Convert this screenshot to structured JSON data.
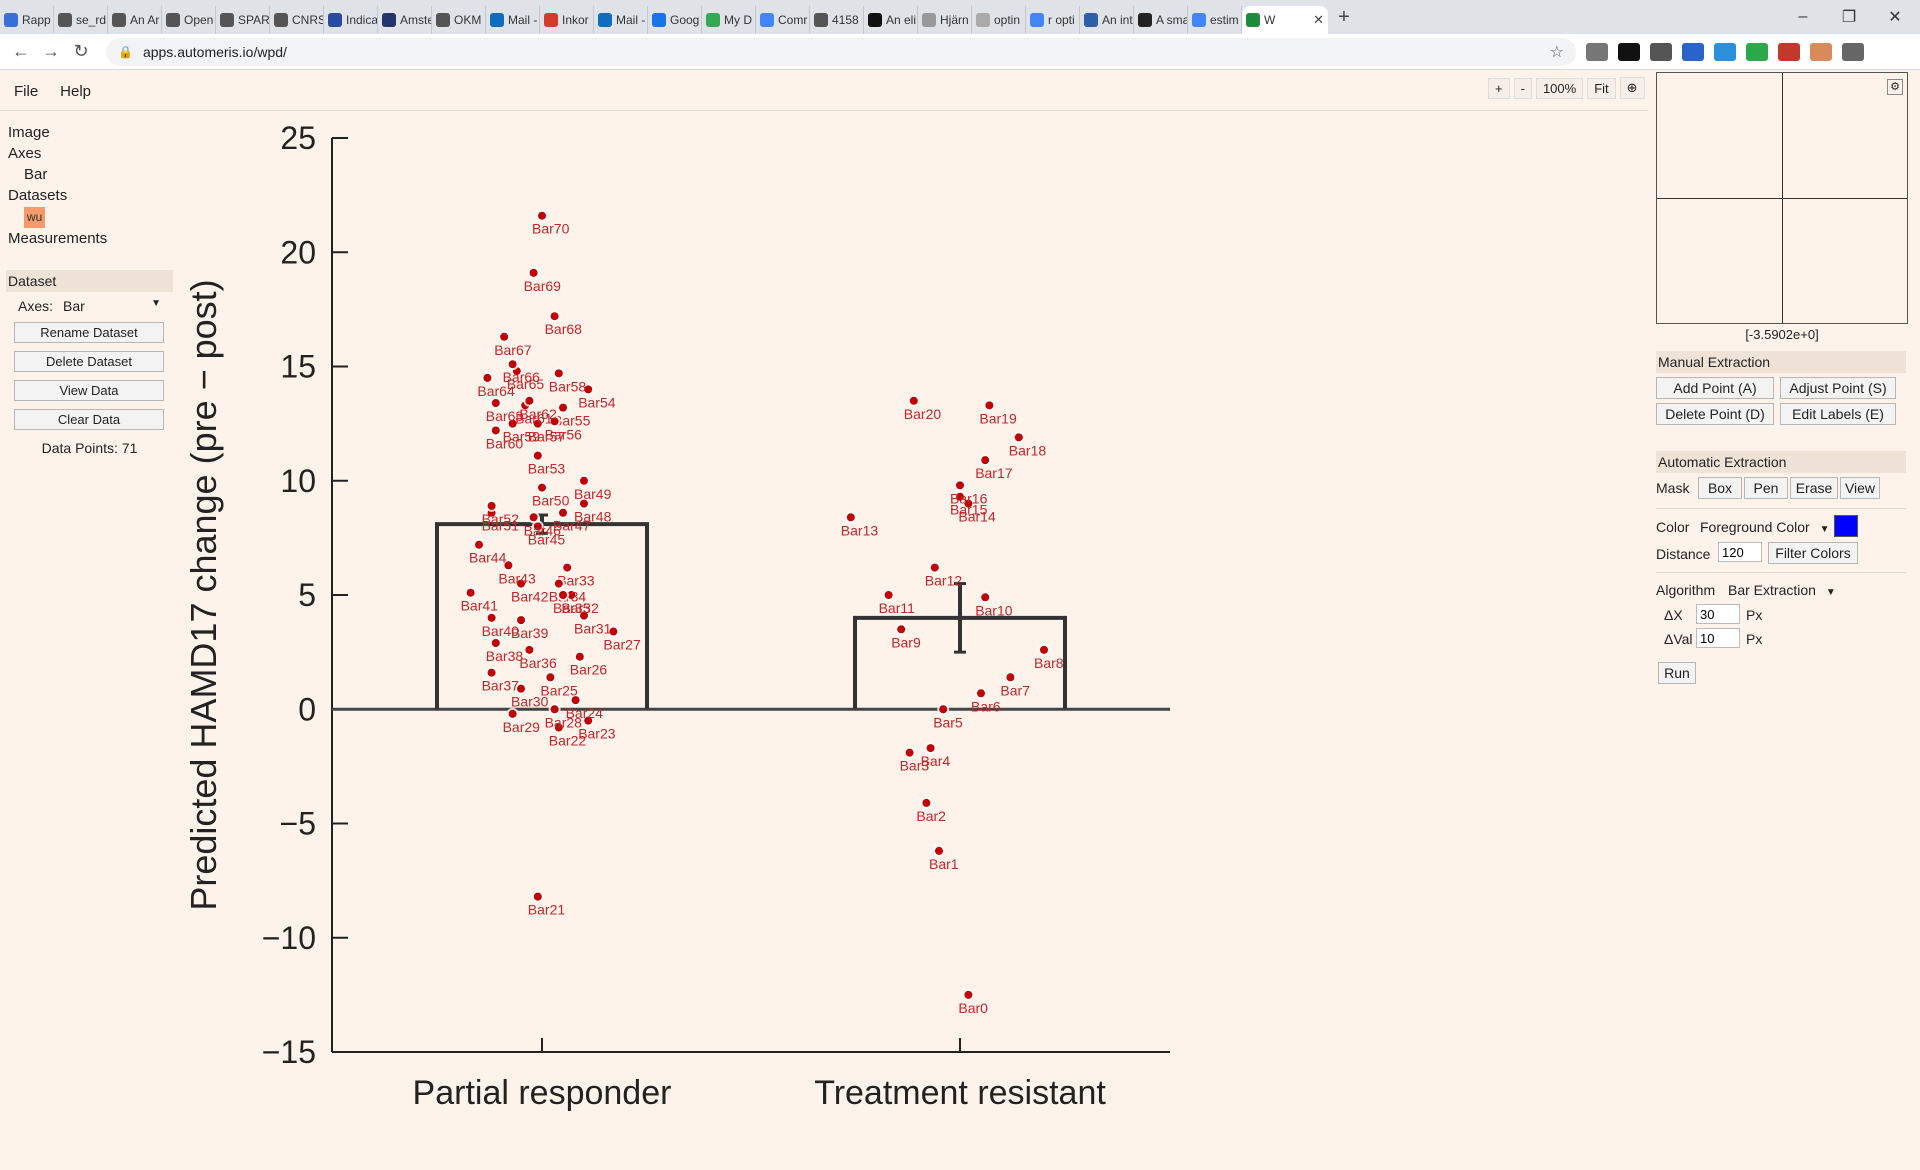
{
  "browser": {
    "tabs": [
      {
        "label": "Rapp",
        "color": "#3b6fd8"
      },
      {
        "label": "se_rd",
        "color": "#555555"
      },
      {
        "label": "An Ar",
        "color": "#555555"
      },
      {
        "label": "Open",
        "color": "#555555"
      },
      {
        "label": "SPAR",
        "color": "#555555"
      },
      {
        "label": "CNRS",
        "color": "#555555"
      },
      {
        "label": "Indica",
        "color": "#2a4aa0"
      },
      {
        "label": "Amste",
        "color": "#23356e"
      },
      {
        "label": "OKM",
        "color": "#555555"
      },
      {
        "label": "Mail -",
        "color": "#0f6cbd"
      },
      {
        "label": "Inkor",
        "color": "#d33b2c"
      },
      {
        "label": "Mail -",
        "color": "#0f6cbd"
      },
      {
        "label": "Goog",
        "color": "#1a73e8"
      },
      {
        "label": "My D",
        "color": "#34a853"
      },
      {
        "label": "Comr",
        "color": "#4285f4"
      },
      {
        "label": "4158",
        "color": "#555555"
      },
      {
        "label": "An eli",
        "color": "#111111"
      },
      {
        "label": "Hjärn",
        "color": "#999999"
      },
      {
        "label": "optin",
        "color": "#aaaaaa"
      },
      {
        "label": "r opti",
        "color": "#4285f4"
      },
      {
        "label": "An int",
        "color": "#2f5ea8"
      },
      {
        "label": "A sma",
        "color": "#222222"
      },
      {
        "label": "estim",
        "color": "#4285f4"
      }
    ],
    "active_tab": {
      "label": "W",
      "color": "#1e8a3c"
    },
    "url": "apps.automeris.io/wpd/",
    "extension_colors": [
      "#777777",
      "#111111",
      "#555555",
      "#2a63c9",
      "#2b8fd9",
      "#2aa84a",
      "#c0392b",
      "#d98a5a",
      "#666666"
    ]
  },
  "app": {
    "menu": [
      "File",
      "Help"
    ],
    "zoom": {
      "plus": "+",
      "minus": "-",
      "level": "100%",
      "fit": "Fit"
    },
    "tree": {
      "image": "Image",
      "axes": "Axes",
      "axes_child": "Bar",
      "datasets": "Datasets",
      "dataset_child": "wu",
      "measurements": "Measurements"
    },
    "dataset_panel": {
      "title": "Dataset",
      "axes_label": "Axes:",
      "axes_value": "Bar",
      "buttons": [
        "Rename Dataset",
        "Delete Dataset",
        "View Data",
        "Clear Data"
      ],
      "data_points": "Data Points: 71"
    },
    "right_panel": {
      "coord": "[-3.5902e+0]",
      "manual_title": "Manual Extraction",
      "manual_buttons": [
        "Add Point (A)",
        "Adjust Point (S)",
        "Delete Point (D)",
        "Edit Labels (E)"
      ],
      "auto_title": "Automatic Extraction",
      "mask_label": "Mask",
      "mask_buttons": [
        "Box",
        "Pen",
        "Erase",
        "View"
      ],
      "color_label": "Color",
      "color_value": "Foreground Color",
      "color_swatch": "#0000ff",
      "distance_label": "Distance",
      "distance_value": "120",
      "filter_button": "Filter Colors",
      "algorithm_label": "Algorithm",
      "algorithm_value": "Bar Extraction",
      "dx_label": "ΔX",
      "dx_value": "30",
      "dval_label": "ΔVal",
      "dval_value": "10",
      "px": "Px",
      "run_button": "Run"
    }
  },
  "chart_data": {
    "type": "bar",
    "categories": [
      "Partial responder",
      "Treatment resistant"
    ],
    "values": [
      8.1,
      4.0
    ],
    "error": [
      0.4,
      1.5
    ],
    "ylabel": "Predicted HAMD17 change (pre − post)",
    "ylim": [
      -15,
      25
    ],
    "yticks": [
      25,
      20,
      15,
      10,
      5,
      0,
      -5,
      -10,
      -15
    ],
    "ytick_labels": [
      "25",
      "20",
      "15",
      "10",
      "5",
      "0",
      "−5",
      "−10",
      "−15"
    ],
    "point_color": "#c00000",
    "label_color": "#c0282d",
    "points": [
      {
        "label": "Bar0",
        "cat": 1,
        "off": 0.02,
        "y": -12.5
      },
      {
        "label": "Bar1",
        "cat": 1,
        "off": -0.05,
        "y": -6.2
      },
      {
        "label": "Bar2",
        "cat": 1,
        "off": -0.08,
        "y": -4.1
      },
      {
        "label": "Bar3",
        "cat": 1,
        "off": -0.12,
        "y": -1.9
      },
      {
        "label": "Bar4",
        "cat": 1,
        "off": -0.07,
        "y": -1.7
      },
      {
        "label": "Bar5",
        "cat": 1,
        "off": -0.04,
        "y": 0.0
      },
      {
        "label": "Bar6",
        "cat": 1,
        "off": 0.05,
        "y": 0.7
      },
      {
        "label": "Bar7",
        "cat": 1,
        "off": 0.12,
        "y": 1.4
      },
      {
        "label": "Bar8",
        "cat": 1,
        "off": 0.2,
        "y": 2.6
      },
      {
        "label": "Bar9",
        "cat": 1,
        "off": -0.14,
        "y": 3.5
      },
      {
        "label": "Bar10",
        "cat": 1,
        "off": 0.06,
        "y": 4.9
      },
      {
        "label": "Bar11",
        "cat": 1,
        "off": -0.17,
        "y": 5.0
      },
      {
        "label": "Bar12",
        "cat": 1,
        "off": -0.06,
        "y": 6.2
      },
      {
        "label": "Bar13",
        "cat": 1,
        "off": -0.26,
        "y": 8.4
      },
      {
        "label": "Bar14",
        "cat": 1,
        "off": 0.02,
        "y": 9.0
      },
      {
        "label": "Bar15",
        "cat": 1,
        "off": 0.0,
        "y": 9.3
      },
      {
        "label": "Bar16",
        "cat": 1,
        "off": 0.0,
        "y": 9.8
      },
      {
        "label": "Bar17",
        "cat": 1,
        "off": 0.06,
        "y": 10.9
      },
      {
        "label": "Bar18",
        "cat": 1,
        "off": 0.14,
        "y": 11.9
      },
      {
        "label": "Bar19",
        "cat": 1,
        "off": 0.07,
        "y": 13.3
      },
      {
        "label": "Bar20",
        "cat": 1,
        "off": -0.11,
        "y": 13.5
      },
      {
        "label": "Bar21",
        "cat": 0,
        "off": -0.01,
        "y": -8.2
      },
      {
        "label": "Bar22",
        "cat": 0,
        "off": 0.04,
        "y": -0.8
      },
      {
        "label": "Bar23",
        "cat": 0,
        "off": 0.11,
        "y": -0.5
      },
      {
        "label": "Bar24",
        "cat": 0,
        "off": 0.08,
        "y": 0.4
      },
      {
        "label": "Bar25",
        "cat": 0,
        "off": 0.02,
        "y": 1.4
      },
      {
        "label": "Bar26",
        "cat": 0,
        "off": 0.09,
        "y": 2.3
      },
      {
        "label": "Bar27",
        "cat": 0,
        "off": 0.17,
        "y": 3.4
      },
      {
        "label": "Bar28",
        "cat": 0,
        "off": 0.03,
        "y": 0.0
      },
      {
        "label": "Bar29",
        "cat": 0,
        "off": -0.07,
        "y": -0.2
      },
      {
        "label": "Bar30",
        "cat": 0,
        "off": -0.05,
        "y": 0.9
      },
      {
        "label": "Bar31",
        "cat": 0,
        "off": 0.1,
        "y": 4.1
      },
      {
        "label": "Bar32",
        "cat": 0,
        "off": 0.07,
        "y": 5.0
      },
      {
        "label": "Bar33",
        "cat": 0,
        "off": 0.06,
        "y": 6.2
      },
      {
        "label": "Bar34",
        "cat": 0,
        "off": 0.04,
        "y": 5.5
      },
      {
        "label": "Bar35",
        "cat": 0,
        "off": 0.05,
        "y": 5.0
      },
      {
        "label": "Bar36",
        "cat": 0,
        "off": -0.03,
        "y": 2.6
      },
      {
        "label": "Bar37",
        "cat": 0,
        "off": -0.12,
        "y": 1.6
      },
      {
        "label": "Bar38",
        "cat": 0,
        "off": -0.11,
        "y": 2.9
      },
      {
        "label": "Bar39",
        "cat": 0,
        "off": -0.05,
        "y": 3.9
      },
      {
        "label": "Bar40",
        "cat": 0,
        "off": -0.12,
        "y": 4.0
      },
      {
        "label": "Bar41",
        "cat": 0,
        "off": -0.17,
        "y": 5.1
      },
      {
        "label": "Bar42",
        "cat": 0,
        "off": -0.05,
        "y": 5.5
      },
      {
        "label": "Bar43",
        "cat": 0,
        "off": -0.08,
        "y": 6.3
      },
      {
        "label": "Bar44",
        "cat": 0,
        "off": -0.15,
        "y": 7.2
      },
      {
        "label": "Bar45",
        "cat": 0,
        "off": -0.01,
        "y": 8.0
      },
      {
        "label": "Bar46",
        "cat": 0,
        "off": -0.02,
        "y": 8.4
      },
      {
        "label": "Bar47",
        "cat": 0,
        "off": 0.05,
        "y": 8.6
      },
      {
        "label": "Bar48",
        "cat": 0,
        "off": 0.1,
        "y": 9.0
      },
      {
        "label": "Bar49",
        "cat": 0,
        "off": 0.1,
        "y": 10.0
      },
      {
        "label": "Bar50",
        "cat": 0,
        "off": 0.0,
        "y": 9.7
      },
      {
        "label": "Bar51",
        "cat": 0,
        "off": -0.12,
        "y": 8.6
      },
      {
        "label": "Bar52",
        "cat": 0,
        "off": -0.12,
        "y": 8.9
      },
      {
        "label": "Bar53",
        "cat": 0,
        "off": -0.01,
        "y": 11.1
      },
      {
        "label": "Bar54",
        "cat": 0,
        "off": 0.11,
        "y": 14.0
      },
      {
        "label": "Bar55",
        "cat": 0,
        "off": 0.05,
        "y": 13.2
      },
      {
        "label": "Bar56",
        "cat": 0,
        "off": 0.03,
        "y": 12.6
      },
      {
        "label": "Bar57",
        "cat": 0,
        "off": -0.01,
        "y": 12.5
      },
      {
        "label": "Bar58",
        "cat": 0,
        "off": 0.04,
        "y": 14.7
      },
      {
        "label": "Bar59",
        "cat": 0,
        "off": -0.07,
        "y": 12.5
      },
      {
        "label": "Bar60",
        "cat": 0,
        "off": -0.11,
        "y": 12.2
      },
      {
        "label": "Bar61",
        "cat": 0,
        "off": -0.04,
        "y": 13.3
      },
      {
        "label": "Bar62",
        "cat": 0,
        "off": -0.03,
        "y": 13.5
      },
      {
        "label": "Bar63",
        "cat": 0,
        "off": -0.11,
        "y": 13.4
      },
      {
        "label": "Bar64",
        "cat": 0,
        "off": -0.13,
        "y": 14.5
      },
      {
        "label": "Bar65",
        "cat": 0,
        "off": -0.06,
        "y": 14.8
      },
      {
        "label": "Bar66",
        "cat": 0,
        "off": -0.07,
        "y": 15.1
      },
      {
        "label": "Bar67",
        "cat": 0,
        "off": -0.09,
        "y": 16.3
      },
      {
        "label": "Bar68",
        "cat": 0,
        "off": 0.03,
        "y": 17.2
      },
      {
        "label": "Bar69",
        "cat": 0,
        "off": -0.02,
        "y": 19.1
      },
      {
        "label": "Bar70",
        "cat": 0,
        "off": 0.0,
        "y": 21.6
      }
    ]
  }
}
